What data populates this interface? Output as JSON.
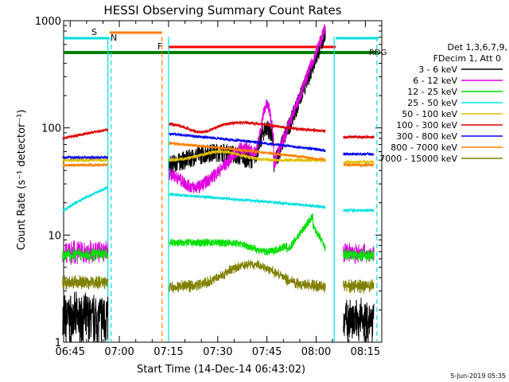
{
  "chart_data": {
    "type": "line",
    "title": "HESSI Observing Summary Count Rates",
    "xlabel": "Start Time (14-Dec-14 06:43:02)",
    "ylabel": "Count Rate (s⁻¹ detector⁻¹)",
    "yscale": "log",
    "ylim": [
      1,
      1000
    ],
    "xlim_minutes_after_0643": [
      0,
      97
    ],
    "x_tick_labels": [
      "06:45",
      "07:00",
      "07:15",
      "07:30",
      "07:45",
      "08:00",
      "08:15"
    ],
    "y_tick_labels": [
      "1",
      "10",
      "100",
      "1000"
    ],
    "legend_header": [
      "Det 1,3,6,7,9,",
      "FDecim 1, Att 0"
    ],
    "legend_position": "top-right outside plot",
    "footer_date": "5-Jun-2019 05:35",
    "series": [
      {
        "name": "3 - 6 keV",
        "color": "#000000"
      },
      {
        "name": "6 - 12 keV",
        "color": "#e000e0"
      },
      {
        "name": "12 - 25 keV",
        "color": "#00e000"
      },
      {
        "name": "25 - 50 keV",
        "color": "#00e0e0"
      },
      {
        "name": "50 - 100 keV",
        "color": "#e0c000"
      },
      {
        "name": "100 - 300 keV",
        "color": "#dd0000"
      },
      {
        "name": "300 - 800 keV",
        "color": "#0000ee"
      },
      {
        "name": "800 - 7000 keV",
        "color": "#ff7f00"
      },
      {
        "name": "7000 - 15000 keV",
        "color": "#808000"
      }
    ],
    "flag_bars": [
      {
        "label": "S",
        "color": "#ff7f00",
        "start": "06:57",
        "end": "07:13"
      },
      {
        "label": "N",
        "color": "#00e0e0",
        "start": "06:43",
        "end": "06:57"
      },
      {
        "label": "F",
        "color": "#ff0000",
        "start": "07:15",
        "end": "08:06"
      },
      {
        "label": "",
        "color": "#00e0e0",
        "start": "08:06",
        "end": "08:19"
      },
      {
        "label": "RDG",
        "color": "#008000",
        "start": "06:43",
        "end": "08:19"
      }
    ],
    "vertical_markers": [
      {
        "time": "06:56.5",
        "color": "#00e0e0",
        "style": "solid"
      },
      {
        "time": "06:57.5",
        "color": "#00e0e0",
        "style": "dashed"
      },
      {
        "time": "07:13",
        "color": "#ff7f00",
        "style": "dashed"
      },
      {
        "time": "07:15",
        "color": "#00e0e0",
        "style": "solid"
      },
      {
        "time": "08:05.5",
        "color": "#00e0e0",
        "style": "solid"
      },
      {
        "time": "08:18.5",
        "color": "#00e0e0",
        "style": "dashed"
      }
    ]
  }
}
